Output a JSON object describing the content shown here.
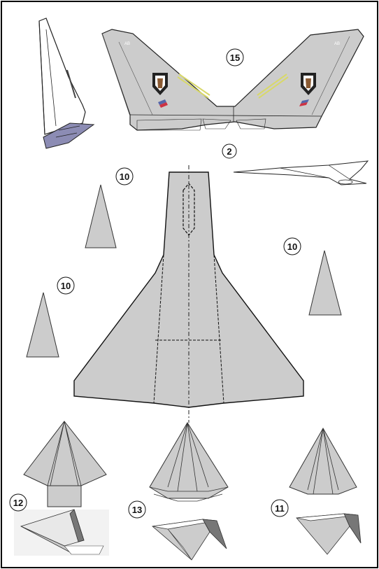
{
  "sheet": {
    "step_labels": {
      "tail": "15",
      "wing_fold": "2",
      "fin_left": "10",
      "fin_right": "10",
      "fin_lower_left": "10",
      "nose_left": "12",
      "nose_center": "13",
      "nose_right": "11"
    },
    "tail_code": "AB",
    "colors": {
      "paper": "#cccccc",
      "outline": "#222222",
      "fold_blue": "#8c8cb4",
      "shadow": "#777777",
      "stripe_blue": "#5566aa",
      "stripe_red": "#cc3344",
      "insignia_yellow": "#d8d86a"
    },
    "icons": [
      "squadron-insignia-icon"
    ]
  }
}
